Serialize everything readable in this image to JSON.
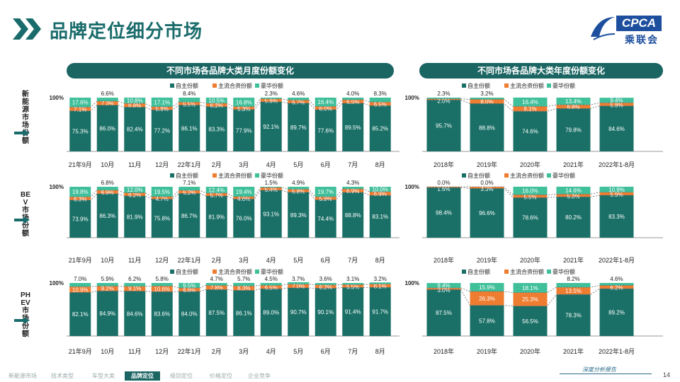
{
  "header": {
    "title": "品牌定位细分市场"
  },
  "logo": {
    "brand": "CPCA",
    "cn": "乘联会",
    "sub": "CPCA"
  },
  "panels": {
    "left_title": "不同市场各品牌大类月度份额变化",
    "right_title": "不同市场各品牌大类年度份额变化"
  },
  "rows": [
    {
      "label": "新能源市场份额"
    },
    {
      "label": "BEV市场份额"
    },
    {
      "label": "PHEV市场份额"
    }
  ],
  "legend": [
    "自主份额",
    "主流合资份额",
    "豪华份额"
  ],
  "colors": {
    "domestic": "#1a7067",
    "mainstream": "#ee7d31",
    "luxury": "#3fbf9a"
  },
  "hundred": "100%",
  "chart_data": [
    {
      "type": "bar",
      "stacked": true,
      "name": "新能源市场份额-月度",
      "categories": [
        "21年9月",
        "10月",
        "11月",
        "12月",
        "22年1月",
        "2月",
        "3月",
        "4月",
        "5月",
        "6月",
        "7月",
        "8月"
      ],
      "series": [
        {
          "name": "自主份额",
          "values": [
            "75.3%",
            "86.0%",
            "82.4%",
            "77.2%",
            "86.1%",
            "83.3%",
            "77.9%",
            "92.1%",
            "89.7%",
            "77.6%",
            "89.5%",
            "85.2%"
          ]
        },
        {
          "name": "主流合资份额",
          "values": [
            "7.1%",
            "7.3%",
            "6.8%",
            "5.8%",
            "5.5%",
            "6.2%",
            "5.3%",
            "5.6%",
            "5.7%",
            "6.0%",
            "6.5%",
            "6.5%"
          ]
        },
        {
          "name": "豪华份额",
          "values": [
            "17.6%",
            "6.6%",
            "10.8%",
            "17.1%",
            "8.4%",
            "10.5%",
            "16.8%",
            "2.3%",
            "4.6%",
            "16.4%",
            "4.0%",
            "8.3%"
          ]
        }
      ],
      "ylim": [
        0,
        100
      ]
    },
    {
      "type": "bar",
      "stacked": true,
      "name": "新能源市场份额-年度",
      "categories": [
        "2018年",
        "2019年",
        "2020年",
        "2021年",
        "2022年1-8月"
      ],
      "series": [
        {
          "name": "自主份额",
          "values": [
            "95.7%",
            "88.8%",
            "74.6%",
            "79.8%",
            "84.6%"
          ]
        },
        {
          "name": "主流合资份额",
          "values": [
            "2.0%",
            "8.0%",
            "9.1%",
            "6.8%",
            "5.8%"
          ]
        },
        {
          "name": "豪华份额",
          "values": [
            "2.3%",
            "3.2%",
            "16.4%",
            "13.4%",
            "9.4%"
          ]
        }
      ],
      "ylim": [
        0,
        100
      ]
    },
    {
      "type": "bar",
      "stacked": true,
      "name": "BEV市场份额-月度",
      "categories": [
        "21年9月",
        "10月",
        "11月",
        "12月",
        "22年1月",
        "2月",
        "3月",
        "4月",
        "5月",
        "6月",
        "7月",
        "8月"
      ],
      "series": [
        {
          "name": "自主份额",
          "values": [
            "73.9%",
            "86.3%",
            "81.9%",
            "75.8%",
            "86.7%",
            "81.9%",
            "76.0%",
            "93.1%",
            "89.3%",
            "74.4%",
            "88.8%",
            "83.1%"
          ]
        },
        {
          "name": "主流合资份额",
          "values": [
            "6.3%",
            "6.9%",
            "6.2%",
            "4.7%",
            "6.2%",
            "5.7%",
            "4.6%",
            "5.4%",
            "5.8%",
            "5.9%",
            "6.9%",
            "6.9%"
          ]
        },
        {
          "name": "豪华份额",
          "values": [
            "19.8%",
            "6.8%",
            "12.0%",
            "19.5%",
            "7.1%",
            "12.4%",
            "19.4%",
            "1.5%",
            "4.9%",
            "19.7%",
            "4.3%",
            "10.0%"
          ]
        }
      ],
      "ylim": [
        0,
        100
      ]
    },
    {
      "type": "bar",
      "stacked": true,
      "name": "BEV市场份额-年度",
      "categories": [
        "2018年",
        "2019年",
        "2020年",
        "2021年",
        "2022年1-8月"
      ],
      "series": [
        {
          "name": "自主份额",
          "values": [
            "98.4%",
            "96.6%",
            "78.6%",
            "80.2%",
            "83.3%"
          ]
        },
        {
          "name": "主流合资份额",
          "values": [
            "1.6%",
            "3.3%",
            "5.5%",
            "5.3%",
            "5.9%"
          ]
        },
        {
          "name": "豪华份额",
          "values": [
            "0.0%",
            "0.0%",
            "16.0%",
            "14.6%",
            "10.9%"
          ]
        }
      ],
      "ylim": [
        0,
        100
      ]
    },
    {
      "type": "bar",
      "stacked": true,
      "name": "PHEV市场份额-月度",
      "categories": [
        "21年9月",
        "10月",
        "11月",
        "12月",
        "22年1月",
        "2月",
        "3月",
        "4月",
        "5月",
        "6月",
        "7月",
        "8月"
      ],
      "series": [
        {
          "name": "自主份额",
          "values": [
            "82.1%",
            "84.9%",
            "84.6%",
            "83.6%",
            "84.0%",
            "87.5%",
            "86.1%",
            "89.0%",
            "90.7%",
            "90.1%",
            "91.4%",
            "91.7%"
          ]
        },
        {
          "name": "主流合资份额",
          "values": [
            "10.9%",
            "9.2%",
            "9.1%",
            "10.6%",
            "6.6%",
            "7.8%",
            "8.3%",
            "6.5%",
            "7.0%",
            "6.2%",
            "5.5%",
            "6.1%"
          ]
        },
        {
          "name": "豪华份额",
          "values": [
            "7.0%",
            "5.9%",
            "6.2%",
            "5.8%",
            "9.5%",
            "4.7%",
            "5.7%",
            "4.5%",
            "3.7%",
            "3.6%",
            "3.1%",
            "3.2%"
          ]
        }
      ],
      "ylim": [
        0,
        100
      ]
    },
    {
      "type": "bar",
      "stacked": true,
      "name": "PHEV市场份额-年度",
      "categories": [
        "2018年",
        "2019年",
        "2020年",
        "2021年",
        "2022年1-8月"
      ],
      "series": [
        {
          "name": "自主份额",
          "values": [
            "87.5%",
            "57.8%",
            "56.5%",
            "78.3%",
            "89.2%"
          ]
        },
        {
          "name": "主流合资份额",
          "values": [
            "3.0%",
            "26.3%",
            "25.3%",
            "13.5%",
            "6.2%"
          ]
        },
        {
          "name": "豪华份额",
          "values": [
            "9.4%",
            "15.9%",
            "18.1%",
            "8.2%",
            "4.6%"
          ]
        }
      ],
      "ylim": [
        0,
        100
      ]
    }
  ],
  "footer": {
    "tabs": [
      "新能源市场",
      "技术类型",
      "车型大类",
      "品牌定位",
      "级别定位",
      "价格定位",
      "企业竞争"
    ],
    "active": "品牌定位",
    "slogan": "深度分析报告",
    "page": "14"
  }
}
